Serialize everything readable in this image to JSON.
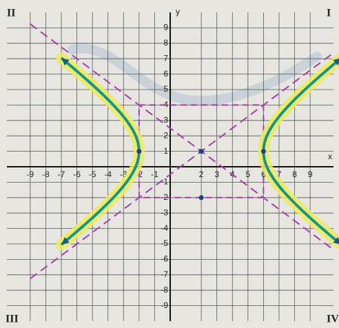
{
  "chart_data": {
    "type": "hyperbola",
    "x_label": "x",
    "y_label": "y",
    "quadrants": [
      "I",
      "II",
      "III",
      "IV"
    ],
    "xlim": [
      -10.5,
      10.5
    ],
    "ylim": [
      -10,
      10
    ],
    "xticks": [
      -9,
      -8,
      -7,
      -6,
      -5,
      -4,
      -3,
      -2,
      -1,
      2,
      3,
      4,
      5,
      6,
      7,
      8,
      9
    ],
    "yticks": [
      -9,
      -8,
      -7,
      -6,
      -5,
      -4,
      -3,
      -2,
      -1,
      1,
      2,
      3,
      4,
      5,
      6,
      7,
      8,
      9
    ],
    "grid": true,
    "center": {
      "x": 2,
      "y": 1
    },
    "a": 4,
    "b": 3,
    "points": [
      {
        "x": 2,
        "y": 1
      },
      {
        "x": 2,
        "y": -2
      },
      {
        "x": -2,
        "y": 1
      },
      {
        "x": 6,
        "y": 1
      }
    ],
    "curve_color": "#14958a",
    "highlight_color": "#ecec5a",
    "guide_color": "#a33fa8"
  }
}
